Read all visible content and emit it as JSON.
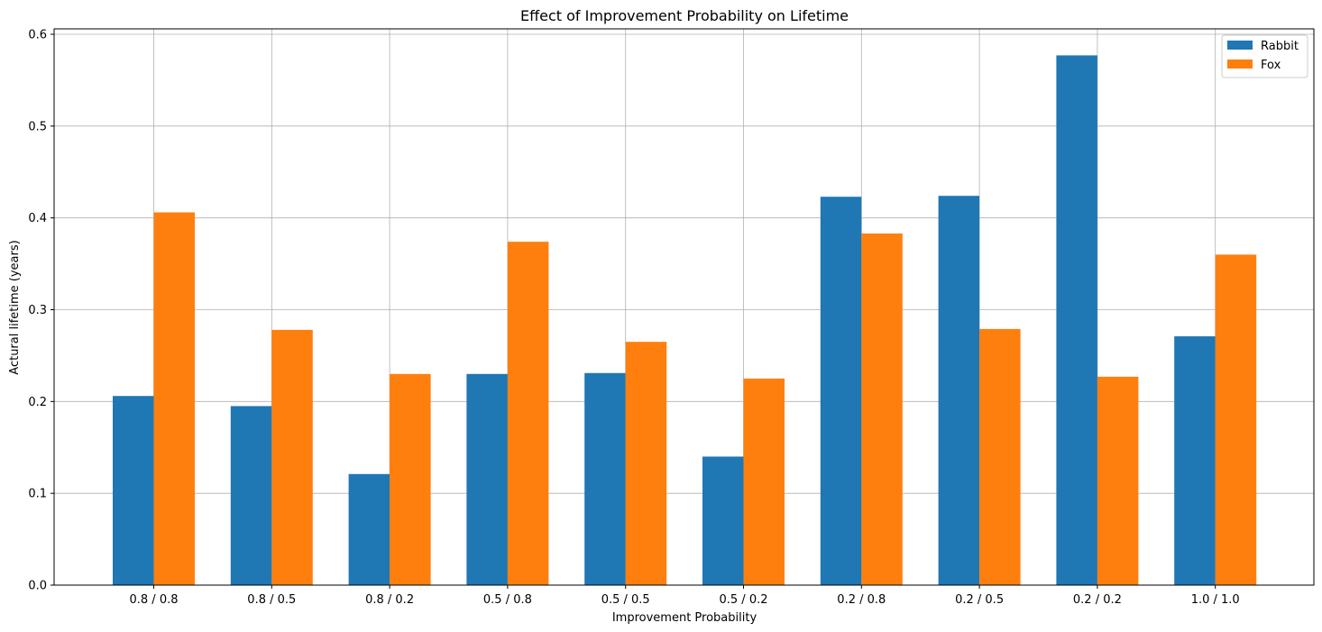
{
  "chart_data": {
    "type": "bar",
    "title": "Effect of Improvement Probability on Lifetime",
    "xlabel": "Improvement Probability",
    "ylabel": "Actural lifetime (years)",
    "categories": [
      "0.8 / 0.8",
      "0.8 / 0.5",
      "0.8 / 0.2",
      "0.5 / 0.8",
      "0.5 / 0.5",
      "0.5 / 0.2",
      "0.2 / 0.8",
      "0.2 / 0.5",
      "0.2 / 0.2",
      "1.0 / 1.0"
    ],
    "series": [
      {
        "name": "Rabbit",
        "color": "#1f77b4",
        "values": [
          0.206,
          0.195,
          0.121,
          0.23,
          0.231,
          0.14,
          0.423,
          0.424,
          0.577,
          0.271
        ]
      },
      {
        "name": "Fox",
        "color": "#ff7f0e",
        "values": [
          0.406,
          0.278,
          0.23,
          0.374,
          0.265,
          0.225,
          0.383,
          0.279,
          0.227,
          0.36
        ]
      }
    ],
    "ylim": [
      0,
      0.6
    ],
    "yticks": [
      "0.0",
      "0.1",
      "0.2",
      "0.3",
      "0.4",
      "0.5",
      "0.6"
    ],
    "grid": true,
    "legend_position": "top-right"
  }
}
